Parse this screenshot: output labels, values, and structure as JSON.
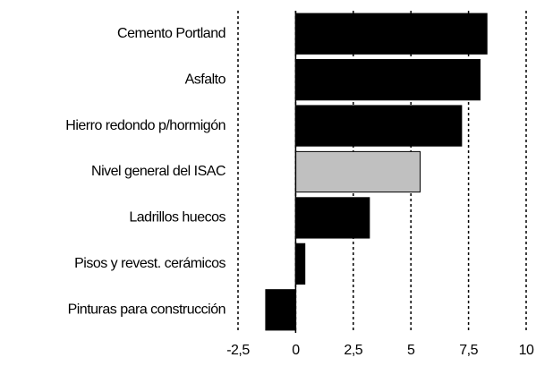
{
  "chart_data": {
    "type": "barh",
    "categories": [
      "Cemento Portland",
      "Asfalto",
      "Hierro redondo p/hormigón",
      "Nivel general del ISAC",
      "Ladrillos huecos",
      "Pisos y revest. cerámicos",
      "Pinturas para construcción"
    ],
    "values": [
      8.3,
      8.0,
      7.2,
      5.4,
      3.2,
      0.4,
      -1.3
    ],
    "colors": [
      "#000000",
      "#000000",
      "#000000",
      "#c0c0c0",
      "#000000",
      "#000000",
      "#000000"
    ],
    "xlim": [
      -2.5,
      10
    ],
    "xticks": [
      {
        "value": -2.5,
        "label": "-2,5"
      },
      0,
      {
        "value": 2.5,
        "label": "2,5"
      },
      5,
      {
        "value": 7.5,
        "label": "7,5"
      },
      10
    ],
    "grid": true
  }
}
